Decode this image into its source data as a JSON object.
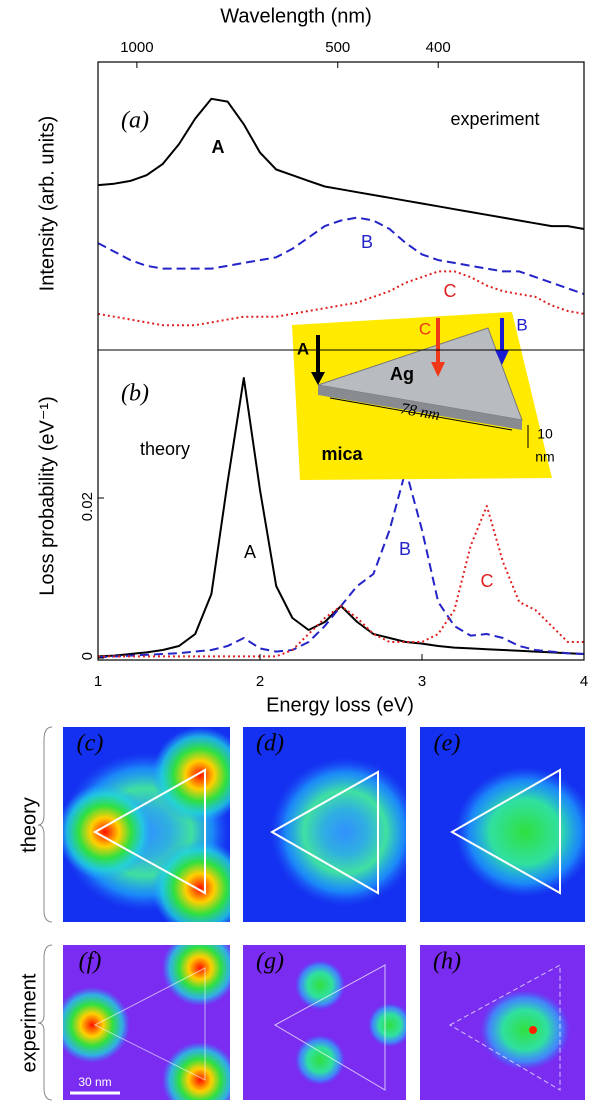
{
  "chart_data": [
    {
      "type": "line",
      "x_label": "Wavelength (nm)",
      "y_label": "Intensity (arb. units)",
      "x2ticks": [
        {
          "value": 1.24,
          "label": "1000"
        },
        {
          "value": 2.48,
          "label": "500"
        },
        {
          "value": 3.1,
          "label": "400"
        }
      ],
      "xlim": [
        1,
        4
      ],
      "ylim": [
        0,
        1
      ],
      "annotations": [
        "(a)",
        "experiment",
        "A",
        "B",
        "C"
      ],
      "x": [
        1.0,
        1.1,
        1.2,
        1.3,
        1.4,
        1.5,
        1.6,
        1.7,
        1.8,
        1.9,
        2.0,
        2.1,
        2.2,
        2.3,
        2.4,
        2.5,
        2.6,
        2.7,
        2.8,
        2.9,
        3.0,
        3.1,
        3.2,
        3.3,
        3.4,
        3.5,
        3.6,
        3.7,
        3.8,
        3.9,
        4.0
      ],
      "series": [
        {
          "color": "#000000",
          "dash": "solid",
          "values": [
            0.565,
            0.57,
            0.58,
            0.6,
            0.64,
            0.71,
            0.8,
            0.87,
            0.86,
            0.78,
            0.68,
            0.62,
            0.6,
            0.58,
            0.56,
            0.55,
            0.54,
            0.53,
            0.52,
            0.51,
            0.5,
            0.49,
            0.48,
            0.47,
            0.46,
            0.45,
            0.44,
            0.43,
            0.42,
            0.42,
            0.41
          ]
        },
        {
          "color": "#2323c8",
          "dash": "dashed",
          "values": [
            0.36,
            0.33,
            0.3,
            0.28,
            0.27,
            0.27,
            0.27,
            0.27,
            0.28,
            0.29,
            0.3,
            0.31,
            0.34,
            0.38,
            0.42,
            0.44,
            0.45,
            0.44,
            0.41,
            0.36,
            0.32,
            0.3,
            0.29,
            0.28,
            0.27,
            0.26,
            0.26,
            0.24,
            0.22,
            0.2,
            0.18
          ]
        },
        {
          "color": "#e02020",
          "dash": "dotted",
          "values": [
            0.11,
            0.1,
            0.09,
            0.08,
            0.07,
            0.07,
            0.07,
            0.08,
            0.09,
            0.1,
            0.1,
            0.1,
            0.11,
            0.12,
            0.13,
            0.14,
            0.15,
            0.17,
            0.19,
            0.22,
            0.24,
            0.26,
            0.26,
            0.24,
            0.21,
            0.19,
            0.18,
            0.17,
            0.14,
            0.12,
            0.11
          ]
        }
      ]
    },
    {
      "type": "line",
      "x_label": "Energy loss (eV)",
      "y_label": "Loss probability (eV⁻¹)",
      "xlim": [
        1,
        4
      ],
      "xticks": [
        1,
        2,
        3,
        4
      ],
      "ylim": [
        0,
        0.038
      ],
      "yticks": [
        0,
        0.02
      ],
      "annotations": [
        "(b)",
        "theory",
        "A",
        "B",
        "C"
      ],
      "inset": [
        "A",
        "C",
        "B",
        "Ag",
        "78 nm",
        "10",
        "nm",
        "mica"
      ],
      "x": [
        1.0,
        1.1,
        1.2,
        1.3,
        1.4,
        1.5,
        1.6,
        1.7,
        1.8,
        1.9,
        2.0,
        2.1,
        2.2,
        2.3,
        2.4,
        2.5,
        2.6,
        2.7,
        2.8,
        2.9,
        3.0,
        3.1,
        3.2,
        3.3,
        3.4,
        3.5,
        3.6,
        3.7,
        3.8,
        3.9,
        4.0
      ],
      "series": [
        {
          "color": "#000000",
          "dash": "solid",
          "values": [
            0.0002,
            0.0003,
            0.0005,
            0.0007,
            0.001,
            0.0015,
            0.003,
            0.008,
            0.022,
            0.035,
            0.021,
            0.009,
            0.005,
            0.0035,
            0.0045,
            0.0065,
            0.0045,
            0.003,
            0.0025,
            0.002,
            0.0018,
            0.0015,
            0.0013,
            0.0012,
            0.0011,
            0.001,
            0.0009,
            0.0008,
            0.0007,
            0.0006,
            0.0005
          ]
        },
        {
          "color": "#2323c8",
          "dash": "dashed",
          "values": [
            0.0001,
            0.0002,
            0.0003,
            0.0004,
            0.0005,
            0.0006,
            0.0008,
            0.001,
            0.0015,
            0.0025,
            0.0012,
            0.0008,
            0.001,
            0.002,
            0.004,
            0.0065,
            0.009,
            0.0105,
            0.016,
            0.0235,
            0.016,
            0.007,
            0.004,
            0.0028,
            0.003,
            0.0025,
            0.0015,
            0.001,
            0.0008,
            0.0006,
            0.0005
          ]
        },
        {
          "color": "#e02020",
          "dash": "dotted",
          "values": [
            0.0002,
            0.0002,
            0.0002,
            0.0002,
            0.0002,
            0.0002,
            0.0002,
            0.0002,
            0.0002,
            0.0002,
            0.0002,
            0.0002,
            0.001,
            0.003,
            0.005,
            0.0065,
            0.005,
            0.003,
            0.002,
            0.002,
            0.002,
            0.003,
            0.006,
            0.014,
            0.019,
            0.012,
            0.007,
            0.006,
            0.004,
            0.002,
            0.002
          ]
        }
      ]
    }
  ],
  "maps": {
    "row_labels": [
      "theory",
      "experiment"
    ],
    "panels": [
      "(c)",
      "(d)",
      "(e)",
      "(f)",
      "(g)",
      "(h)"
    ],
    "scale_bar": "30 nm"
  }
}
